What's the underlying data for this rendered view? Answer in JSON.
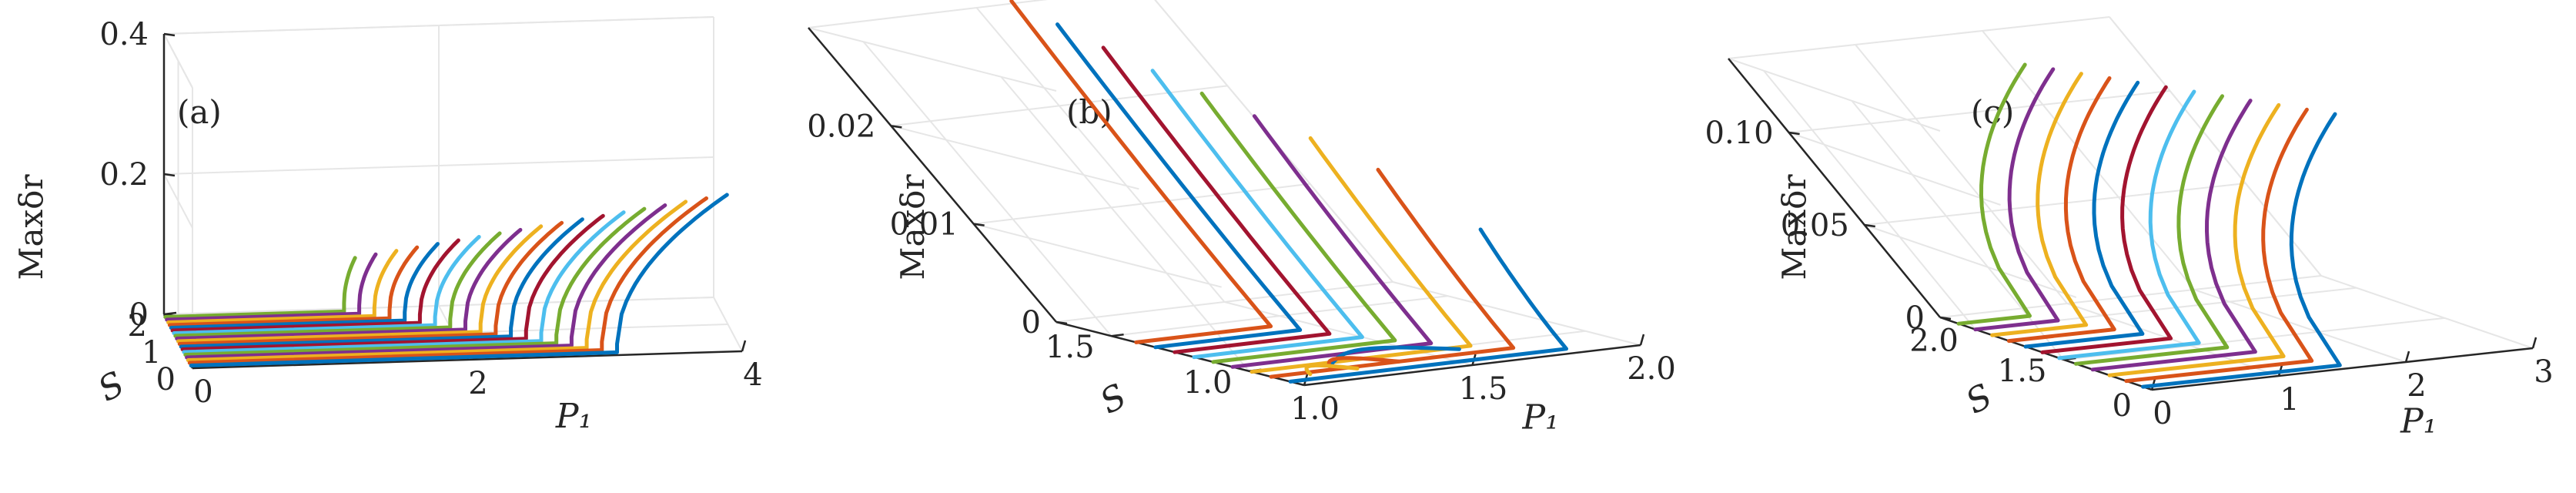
{
  "colors": [
    "#0072BD",
    "#D95319",
    "#EDB120",
    "#7E2F8E",
    "#77AC30",
    "#4DBEEE",
    "#A2142F"
  ],
  "chart_data": [
    {
      "type": "line",
      "panel_label": "(a)",
      "xlabel": "P₁",
      "ylabel": "S",
      "zlabel": "Maxδr",
      "xlim": [
        0,
        4
      ],
      "ylim": [
        0,
        2
      ],
      "zlim": [
        0,
        0.4
      ],
      "xticks": [
        "0",
        "2",
        "4"
      ],
      "yticks": [
        "0",
        "1",
        "2"
      ],
      "zticks": [
        "0",
        "0.2",
        "0.4"
      ],
      "grid": true,
      "curve_family": {
        "count": 19,
        "S_start": 0.1,
        "S_step": 0.1,
        "P_onset_start": 3.1,
        "P_onset_step": -0.1,
        "P_end_start": 3.9,
        "P_end_step": -0.14,
        "delta_end_start": 0.22,
        "delta_end_step": -0.008,
        "delta_jump": 0.012
      }
    },
    {
      "type": "line",
      "panel_label": "(b)",
      "xlabel": "P₁",
      "ylabel": "S",
      "zlabel": "Maxδr",
      "xlim": [
        1.0,
        2.0
      ],
      "ylim": [
        0.8,
        1.7
      ],
      "zlim": [
        0,
        0.03
      ],
      "xticks": [
        "1.0",
        "1.5",
        "2.0"
      ],
      "yticks": [
        "1.0",
        "1.5"
      ],
      "zticks": [
        "0",
        "0.01",
        "0.02"
      ],
      "grid": true,
      "curves": [
        {
          "S": 0.85,
          "P_onset": 1.82,
          "delta_end": 0.012,
          "color_index": 0
        },
        {
          "S": 0.92,
          "P_onset": 1.72,
          "delta_end": 0.018,
          "color_index": 1
        },
        {
          "S": 0.99,
          "P_onset": 1.65,
          "delta_end": 0.021,
          "color_index": 2
        },
        {
          "S": 1.06,
          "P_onset": 1.59,
          "delta_end": 0.023,
          "color_index": 3
        },
        {
          "S": 1.13,
          "P_onset": 1.54,
          "delta_end": 0.025,
          "color_index": 4
        },
        {
          "S": 1.2,
          "P_onset": 1.5,
          "delta_end": 0.027,
          "color_index": 5
        },
        {
          "S": 1.27,
          "P_onset": 1.46,
          "delta_end": 0.029,
          "color_index": 6
        },
        {
          "S": 1.34,
          "P_onset": 1.43,
          "delta_end": 0.031,
          "color_index": 0
        },
        {
          "S": 1.41,
          "P_onset": 1.4,
          "delta_end": 0.033,
          "color_index": 1
        }
      ],
      "boundary_arcs": [
        {
          "P": [
            1.22,
            1.43,
            1.6
          ],
          "S_peak": 1.08,
          "S_base": 0.97,
          "color_index": 0
        },
        {
          "P": [
            1.18,
            1.28,
            1.38
          ],
          "S_peak": 1.02,
          "S_base": 0.92,
          "color_index": 1
        },
        {
          "P": [
            1.1,
            1.16,
            1.24
          ],
          "S_peak": 0.98,
          "S_base": 0.9,
          "color_index": 2
        }
      ]
    },
    {
      "type": "line",
      "panel_label": "(c)",
      "xlabel": "P₁",
      "ylabel": "S",
      "zlabel": "Maxδr",
      "xlim": [
        0,
        3
      ],
      "ylim": [
        1.0,
        2.2
      ],
      "zlim": [
        0,
        0.14
      ],
      "xticks": [
        "0",
        "1",
        "2",
        "3"
      ],
      "yticks": [
        "1.5",
        "2.0"
      ],
      "ytick_zero": "0",
      "zticks": [
        "0",
        "0.05",
        "0.10"
      ],
      "grid": true,
      "curve_family": {
        "count": 12,
        "S_start": 1.05,
        "S_step": 0.095,
        "P_onset_start": 1.55,
        "P_onset_step": -0.09,
        "P_end_start": 3.0,
        "P_end_step": -0.09,
        "delta_end_start": 0.125,
        "delta_end_step": 0.0
      }
    }
  ]
}
